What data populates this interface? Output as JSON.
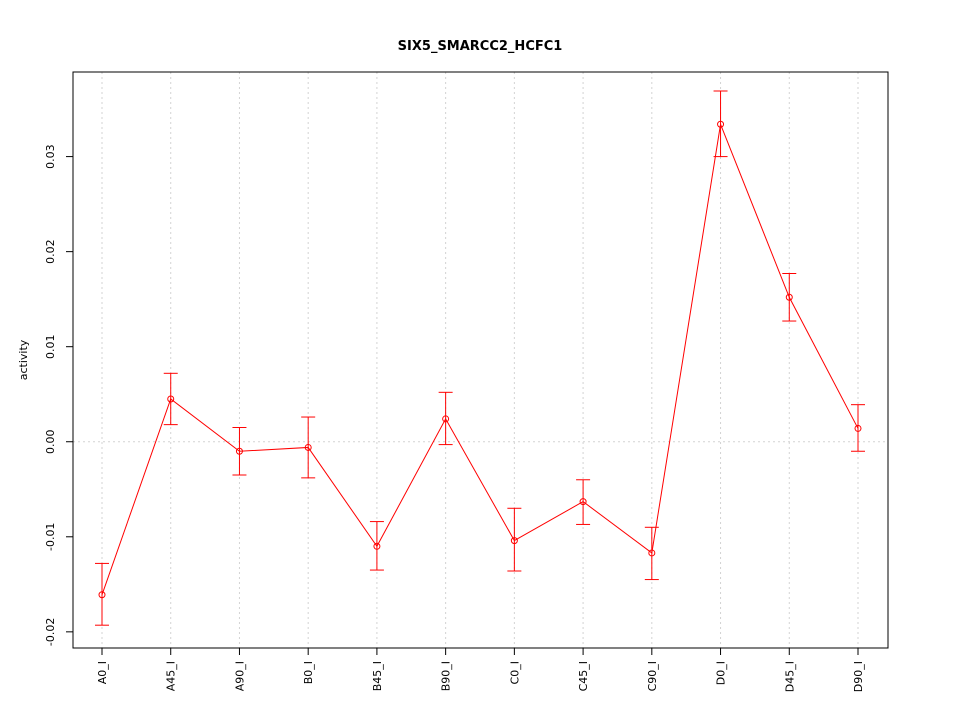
{
  "chart_data": {
    "type": "line",
    "title": "SIX5_SMARCC2_HCFC1",
    "xlabel": "",
    "ylabel": "activity",
    "categories": [
      "A0_I",
      "A45_I",
      "A90_I",
      "B0_I",
      "B45_I",
      "B90_I",
      "C0_I",
      "C45_I",
      "C90_I",
      "D0_I",
      "D45_I",
      "D90_I"
    ],
    "series": [
      {
        "values": [
          -0.0161,
          0.0045,
          -0.001,
          -0.0006,
          -0.011,
          0.0024,
          -0.0104,
          -0.0063,
          -0.0117,
          0.0334,
          0.0152,
          0.0014
        ],
        "err_low": [
          -0.0193,
          0.0018,
          -0.0035,
          -0.0038,
          -0.0135,
          -0.0003,
          -0.0136,
          -0.0087,
          -0.0145,
          0.03,
          0.0127,
          -0.001
        ],
        "err_high": [
          -0.0128,
          0.0072,
          0.0015,
          0.0026,
          -0.0084,
          0.0052,
          -0.007,
          -0.004,
          -0.009,
          0.0369,
          0.0177,
          0.0039
        ],
        "color": "#ff0000"
      }
    ],
    "ylim": [
      -0.0217,
      0.0389
    ],
    "yticks": [
      -0.02,
      -0.01,
      0.0,
      0.01,
      0.02,
      0.03
    ],
    "ytick_labels": [
      "-0.02",
      "-0.01",
      "0.00",
      "0.01",
      "0.02",
      "0.03"
    ],
    "grid": true,
    "grid_color": "#d3d3d3",
    "axis_color": "#000000",
    "legend": "none"
  }
}
